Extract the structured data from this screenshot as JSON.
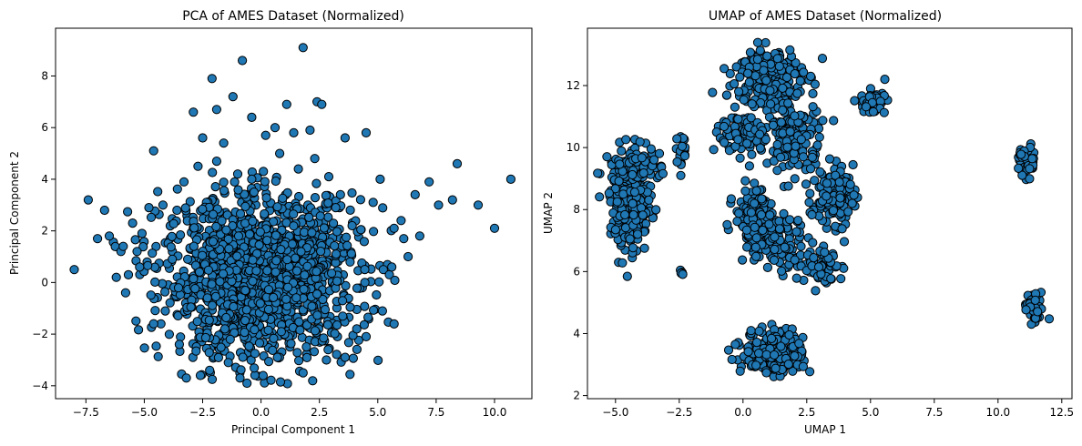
{
  "figure": {
    "marker_fill": "#1f77b4",
    "marker_edge": "#000000"
  },
  "chart_data": [
    {
      "type": "scatter",
      "title": "PCA of AMES Dataset (Normalized)",
      "xlabel": "Principal Component 1",
      "ylabel": "Principal Component 2",
      "xlim": [
        -8.8,
        11.6
      ],
      "ylim": [
        -4.5,
        9.85
      ],
      "xticks": [
        -7.5,
        -5.0,
        -2.5,
        0.0,
        2.5,
        5.0,
        7.5,
        10.0
      ],
      "xtick_labels": [
        "−7.5",
        "−5.0",
        "−2.5",
        "0.0",
        "2.5",
        "5.0",
        "7.5",
        "10.0"
      ],
      "yticks": [
        -4,
        -2,
        0,
        2,
        4,
        6,
        8
      ],
      "ytick_labels": [
        "−4",
        "−2",
        "0",
        "2",
        "4",
        "6",
        "8"
      ],
      "grid": false,
      "points": [
        [
          -8.0,
          0.5
        ],
        [
          -7.4,
          3.2
        ],
        [
          -6.7,
          2.8
        ],
        [
          -6.5,
          1.8
        ],
        [
          -6.0,
          1.2
        ],
        [
          -5.8,
          -0.4
        ],
        [
          -5.5,
          2.3
        ],
        [
          -5.2,
          0.6
        ],
        [
          -4.6,
          5.1
        ],
        [
          -4.2,
          3.0
        ],
        [
          -4.6,
          -1.6
        ],
        [
          -3.6,
          2.8
        ],
        [
          -3.3,
          3.9
        ],
        [
          -2.9,
          6.6
        ],
        [
          -2.5,
          5.6
        ],
        [
          -2.1,
          7.9
        ],
        [
          -1.9,
          6.7
        ],
        [
          -1.2,
          7.2
        ],
        [
          -0.8,
          8.6
        ],
        [
          -0.4,
          6.4
        ],
        [
          0.2,
          5.7
        ],
        [
          0.8,
          5.0
        ],
        [
          1.1,
          6.9
        ],
        [
          1.8,
          9.1
        ],
        [
          2.1,
          5.9
        ],
        [
          2.4,
          7.0
        ],
        [
          2.6,
          6.9
        ],
        [
          3.6,
          5.6
        ],
        [
          4.5,
          5.8
        ],
        [
          5.1,
          4.0
        ],
        [
          6.6,
          3.4
        ],
        [
          7.2,
          3.9
        ],
        [
          7.6,
          3.0
        ],
        [
          8.2,
          3.2
        ],
        [
          8.4,
          4.6
        ],
        [
          9.3,
          3.0
        ],
        [
          10.0,
          2.1
        ],
        [
          10.7,
          4.0
        ],
        [
          6.0,
          2.4
        ],
        [
          6.8,
          1.8
        ],
        [
          5.6,
          0.6
        ],
        [
          5.2,
          -1.1
        ],
        [
          4.5,
          -2.1
        ],
        [
          3.6,
          -2.9
        ],
        [
          2.8,
          -3.0
        ],
        [
          1.8,
          -3.5
        ],
        [
          0.7,
          -2.9
        ],
        [
          -0.6,
          -3.9
        ],
        [
          -1.4,
          -3.1
        ],
        [
          -2.6,
          -3.6
        ],
        [
          -3.2,
          -3.7
        ],
        [
          -3.5,
          -2.4
        ],
        [
          -2.2,
          -3.4
        ],
        [
          -4.1,
          -1.1
        ],
        [
          0.1,
          4.3
        ],
        [
          -0.4,
          4.0
        ],
        [
          1.6,
          4.4
        ],
        [
          -1.0,
          4.2
        ],
        [
          -3.8,
          0.9
        ],
        [
          3.9,
          2.2
        ],
        [
          -7.0,
          1.7
        ],
        [
          -6.2,
          0.2
        ],
        [
          4.8,
          3.1
        ],
        [
          -5.1,
          1.9
        ],
        [
          2.9,
          4.1
        ],
        [
          3.4,
          3.4
        ],
        [
          -2.7,
          4.5
        ],
        [
          -1.6,
          5.4
        ],
        [
          0.6,
          6.0
        ],
        [
          1.4,
          5.8
        ],
        [
          -0.3,
          3.5
        ],
        [
          6.3,
          1.0
        ],
        [
          -4.8,
          2.9
        ],
        [
          -5.9,
          1.4
        ],
        [
          4.1,
          -1.8
        ],
        [
          5.7,
          2.1
        ],
        [
          -0.9,
          -3.7
        ],
        [
          -1.9,
          4.7
        ],
        [
          2.3,
          4.8
        ],
        [
          3.2,
          2.9
        ]
      ],
      "cloud": {
        "count": 1500,
        "center": [
          0.0,
          0.2
        ],
        "spread": [
          2.1,
          1.55
        ]
      }
    },
    {
      "type": "scatter",
      "title": "UMAP of AMES Dataset (Normalized)",
      "xlabel": "UMAP 1",
      "ylabel": "UMAP 2",
      "xlim": [
        -6.1,
        12.9
      ],
      "ylim": [
        1.9,
        13.85
      ],
      "xticks": [
        -5.0,
        -2.5,
        0.0,
        2.5,
        5.0,
        7.5,
        10.0,
        12.5
      ],
      "xtick_labels": [
        "−5.0",
        "−2.5",
        "0.0",
        "2.5",
        "5.0",
        "7.5",
        "10.0",
        "12.5"
      ],
      "yticks": [
        2,
        4,
        6,
        8,
        10,
        12
      ],
      "ytick_labels": [
        "2",
        "4",
        "6",
        "8",
        "10",
        "12"
      ],
      "grid": false,
      "clusters": [
        {
          "center": [
            -4.4,
            8.2
          ],
          "spread": [
            0.5,
            1.0
          ],
          "count": 260
        },
        {
          "center": [
            -4.2,
            9.4
          ],
          "spread": [
            0.6,
            0.3
          ],
          "count": 80
        },
        {
          "center": [
            -2.45,
            9.9
          ],
          "spread": [
            0.2,
            0.35
          ],
          "count": 22
        },
        {
          "center": [
            -2.4,
            5.95
          ],
          "spread": [
            0.06,
            0.05
          ],
          "count": 6
        },
        {
          "center": [
            1.0,
            12.3
          ],
          "spread": [
            0.8,
            0.6
          ],
          "count": 230
        },
        {
          "center": [
            0.5,
            10.5
          ],
          "spread": [
            0.9,
            0.5
          ],
          "count": 130
        },
        {
          "center": [
            2.0,
            10.3
          ],
          "spread": [
            0.7,
            0.8
          ],
          "count": 120
        },
        {
          "center": [
            5.1,
            11.45
          ],
          "spread": [
            0.3,
            0.22
          ],
          "count": 70
        },
        {
          "center": [
            0.5,
            7.7
          ],
          "spread": [
            0.5,
            0.6
          ],
          "count": 150
        },
        {
          "center": [
            1.5,
            6.8
          ],
          "spread": [
            0.7,
            0.6
          ],
          "count": 80
        },
        {
          "center": [
            3.5,
            8.4
          ],
          "spread": [
            0.5,
            0.6
          ],
          "count": 110
        },
        {
          "center": [
            3.2,
            6.2
          ],
          "spread": [
            0.5,
            0.4
          ],
          "count": 60
        },
        {
          "center": [
            1.2,
            3.4
          ],
          "spread": [
            0.75,
            0.45
          ],
          "count": 230
        },
        {
          "center": [
            11.15,
            9.55
          ],
          "spread": [
            0.2,
            0.3
          ],
          "count": 65
        },
        {
          "center": [
            11.4,
            4.8
          ],
          "spread": [
            0.25,
            0.3
          ],
          "count": 45
        }
      ]
    }
  ]
}
